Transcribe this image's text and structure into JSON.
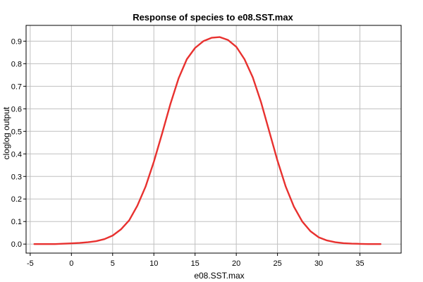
{
  "chart_data": {
    "type": "line",
    "title": "Response of species to e08.SST.max",
    "xlabel": "e08.SST.max",
    "ylabel": "cloglog output",
    "xlim": [
      -5.5,
      40
    ],
    "ylim": [
      -0.04,
      0.97
    ],
    "x_ticks": [
      -5,
      0,
      5,
      10,
      15,
      20,
      25,
      30,
      35
    ],
    "x_tick_labels": [
      "-5",
      "0",
      "5",
      "10",
      "15",
      "20",
      "25",
      "30",
      "35"
    ],
    "y_ticks": [
      0.0,
      0.1,
      0.2,
      0.3,
      0.4,
      0.5,
      0.6,
      0.7,
      0.8,
      0.9
    ],
    "y_tick_labels": [
      "0.0",
      "0.1",
      "0.2",
      "0.3",
      "0.4",
      "0.5",
      "0.6",
      "0.7",
      "0.8",
      "0.9"
    ],
    "grid": true,
    "series": [
      {
        "color": "#e8312f",
        "x": [
          -4.5,
          -2,
          0,
          1,
          2,
          3,
          4,
          5,
          6,
          7,
          8,
          9,
          10,
          11,
          12,
          13,
          14,
          15,
          16,
          17,
          18,
          19,
          20,
          21,
          22,
          23,
          24,
          25,
          26,
          27,
          28,
          29,
          30,
          31,
          32,
          33,
          34,
          35,
          36,
          37.5
        ],
        "y": [
          0.0,
          0.0,
          0.003,
          0.005,
          0.008,
          0.013,
          0.022,
          0.038,
          0.065,
          0.105,
          0.17,
          0.255,
          0.365,
          0.49,
          0.62,
          0.735,
          0.82,
          0.87,
          0.9,
          0.915,
          0.918,
          0.905,
          0.875,
          0.82,
          0.74,
          0.63,
          0.5,
          0.37,
          0.255,
          0.165,
          0.1,
          0.057,
          0.03,
          0.016,
          0.008,
          0.004,
          0.002,
          0.001,
          0.0,
          0.0
        ]
      }
    ]
  }
}
